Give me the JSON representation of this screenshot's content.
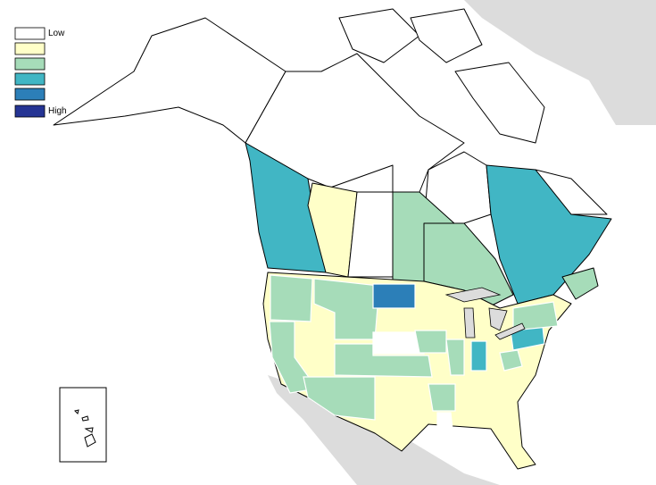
{
  "legend": {
    "items": [
      {
        "label": "Low",
        "color": "#ffffff"
      },
      {
        "label": null,
        "color": "#ffffc8"
      },
      {
        "label": null,
        "color": "#a6dcb9"
      },
      {
        "label": null,
        "color": "#41b6c4"
      },
      {
        "label": null,
        "color": "#2c7fb8"
      },
      {
        "label": "High",
        "color": "#253494"
      }
    ]
  }
}
